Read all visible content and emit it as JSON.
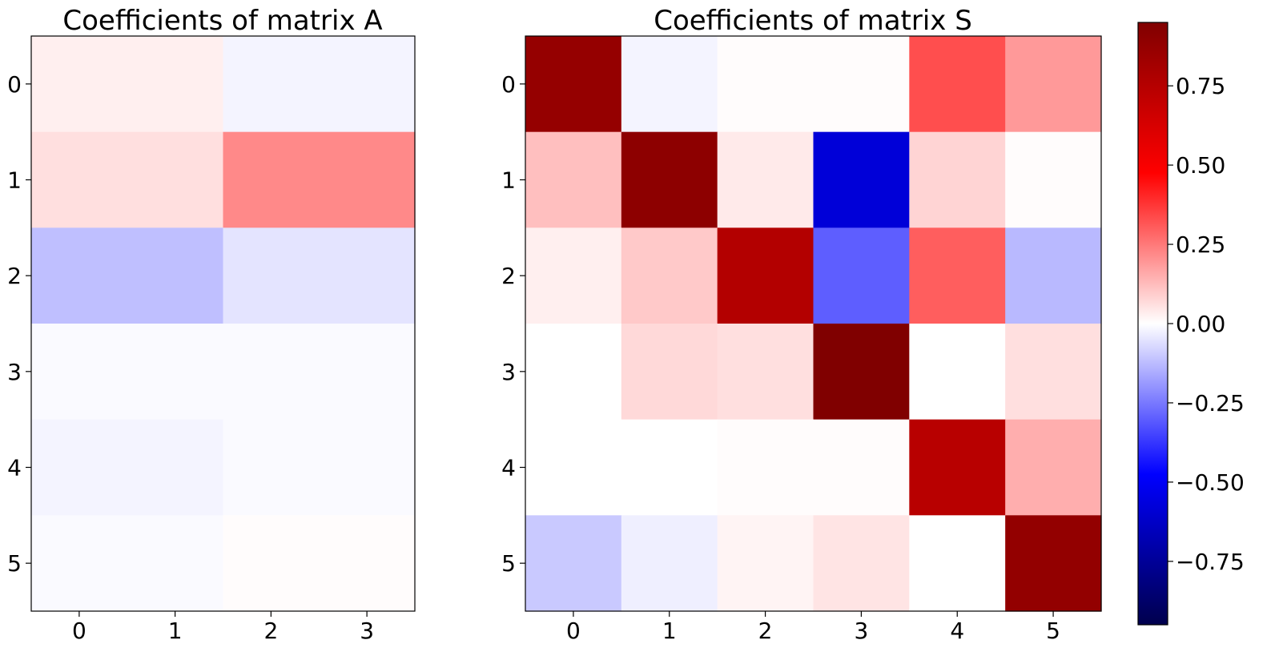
{
  "chart_data": [
    {
      "type": "heatmap",
      "title": "Coefficients of matrix A",
      "x_ticks": [
        "0",
        "1",
        "2",
        "3"
      ],
      "y_ticks": [
        "0",
        "1",
        "2",
        "3",
        "4",
        "5"
      ],
      "rows": 6,
      "cols": 2,
      "cell_width_in_columns": 2,
      "values": [
        [
          0.03,
          -0.02
        ],
        [
          0.06,
          0.22
        ],
        [
          -0.12,
          -0.05
        ],
        [
          -0.01,
          -0.01
        ],
        [
          -0.02,
          -0.01
        ],
        [
          -0.01,
          0.005
        ]
      ]
    },
    {
      "type": "heatmap",
      "title": "Coefficients of matrix S",
      "x_ticks": [
        "0",
        "1",
        "2",
        "3",
        "4",
        "5"
      ],
      "y_ticks": [
        "0",
        "1",
        "2",
        "3",
        "4",
        "5"
      ],
      "rows": 6,
      "cols": 6,
      "values": [
        [
          0.87,
          -0.02,
          0.005,
          0.005,
          0.33,
          0.19
        ],
        [
          0.12,
          0.9,
          0.04,
          -0.58,
          0.08,
          0.005
        ],
        [
          0.03,
          0.1,
          0.76,
          -0.3,
          0.3,
          -0.13
        ],
        [
          0.0,
          0.07,
          0.06,
          0.95,
          0.0,
          0.06
        ],
        [
          0.0,
          0.0,
          0.005,
          0.005,
          0.74,
          0.15
        ],
        [
          -0.1,
          -0.03,
          0.02,
          0.05,
          0.0,
          0.88
        ]
      ]
    }
  ],
  "colorbar": {
    "colormap": "seismic",
    "vmin": -0.95,
    "vmax": 0.95,
    "ticks": [
      0.75,
      0.5,
      0.25,
      0.0,
      -0.25,
      -0.5,
      -0.75
    ],
    "tick_labels": [
      "0.75",
      "0.50",
      "0.25",
      "0.00",
      "−0.25",
      "−0.50",
      "−0.75"
    ]
  }
}
